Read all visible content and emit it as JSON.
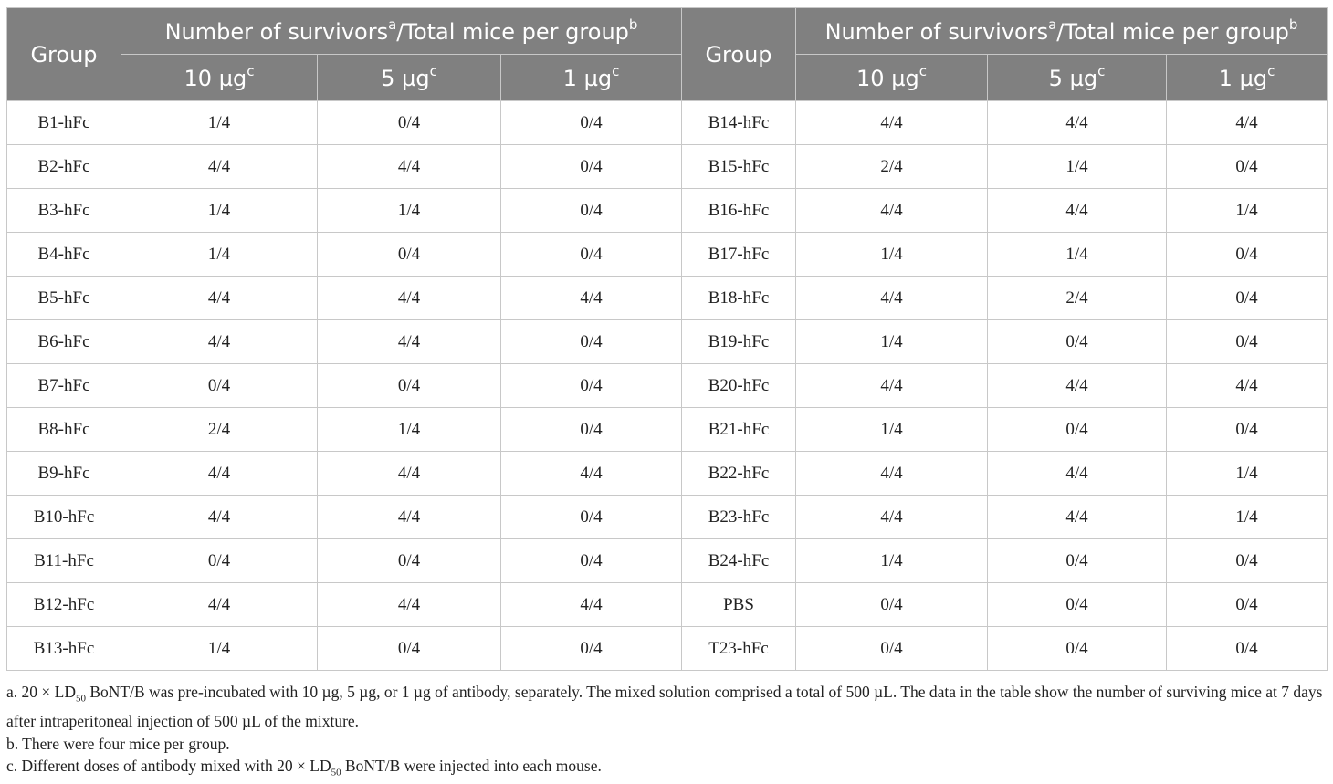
{
  "table": {
    "group_header": "Group",
    "survivor_header": "Number of survivors",
    "survivor_header_sup_a": "a",
    "survivor_header_mid": "/Total mice per group",
    "survivor_header_sup_b": "b",
    "doses": [
      {
        "label": "10 µg",
        "sup": "c"
      },
      {
        "label": "5 µg",
        "sup": "c"
      },
      {
        "label": "1 µg",
        "sup": "c"
      }
    ],
    "rows_left": [
      {
        "group": "B1-hFc",
        "d10": "1/4",
        "d5": "0/4",
        "d1": "0/4"
      },
      {
        "group": "B2-hFc",
        "d10": "4/4",
        "d5": "4/4",
        "d1": "0/4"
      },
      {
        "group": "B3-hFc",
        "d10": "1/4",
        "d5": "1/4",
        "d1": "0/4"
      },
      {
        "group": "B4-hFc",
        "d10": "1/4",
        "d5": "0/4",
        "d1": "0/4"
      },
      {
        "group": "B5-hFc",
        "d10": "4/4",
        "d5": "4/4",
        "d1": "4/4"
      },
      {
        "group": "B6-hFc",
        "d10": "4/4",
        "d5": "4/4",
        "d1": "0/4"
      },
      {
        "group": "B7-hFc",
        "d10": "0/4",
        "d5": "0/4",
        "d1": "0/4"
      },
      {
        "group": "B8-hFc",
        "d10": "2/4",
        "d5": "1/4",
        "d1": "0/4"
      },
      {
        "group": "B9-hFc",
        "d10": "4/4",
        "d5": "4/4",
        "d1": "4/4"
      },
      {
        "group": "B10-hFc",
        "d10": "4/4",
        "d5": "4/4",
        "d1": "0/4"
      },
      {
        "group": "B11-hFc",
        "d10": "0/4",
        "d5": "0/4",
        "d1": "0/4"
      },
      {
        "group": "B12-hFc",
        "d10": "4/4",
        "d5": "4/4",
        "d1": "4/4"
      },
      {
        "group": "B13-hFc",
        "d10": "1/4",
        "d5": "0/4",
        "d1": "0/4"
      }
    ],
    "rows_right": [
      {
        "group": "B14-hFc",
        "d10": "4/4",
        "d5": "4/4",
        "d1": "4/4"
      },
      {
        "group": "B15-hFc",
        "d10": "2/4",
        "d5": "1/4",
        "d1": "0/4"
      },
      {
        "group": "B16-hFc",
        "d10": "4/4",
        "d5": "4/4",
        "d1": "1/4"
      },
      {
        "group": "B17-hFc",
        "d10": "1/4",
        "d5": "1/4",
        "d1": "0/4"
      },
      {
        "group": "B18-hFc",
        "d10": "4/4",
        "d5": "2/4",
        "d1": "0/4"
      },
      {
        "group": "B19-hFc",
        "d10": "1/4",
        "d5": "0/4",
        "d1": "0/4"
      },
      {
        "group": "B20-hFc",
        "d10": "4/4",
        "d5": "4/4",
        "d1": "4/4"
      },
      {
        "group": "B21-hFc",
        "d10": "1/4",
        "d5": "0/4",
        "d1": "0/4"
      },
      {
        "group": "B22-hFc",
        "d10": "4/4",
        "d5": "4/4",
        "d1": "1/4"
      },
      {
        "group": "B23-hFc",
        "d10": "4/4",
        "d5": "4/4",
        "d1": "1/4"
      },
      {
        "group": "B24-hFc",
        "d10": "1/4",
        "d5": "0/4",
        "d1": "0/4"
      },
      {
        "group": "PBS",
        "d10": "0/4",
        "d5": "0/4",
        "d1": "0/4"
      },
      {
        "group": "T23-hFc",
        "d10": "0/4",
        "d5": "0/4",
        "d1": "0/4"
      }
    ]
  },
  "footnotes": {
    "a_pre": "a. 20 × LD",
    "a_sub": "50",
    "a_post": " BoNT/B was pre-incubated with 10 µg, 5 µg, or 1 µg of antibody, separately. The mixed solution comprised a total of 500 µL. The data in the table show the number of surviving mice at 7 days after intraperitoneal injection of 500 µL of the mixture.",
    "b": "b. There were four mice per group.",
    "c_pre": "c. Different doses of antibody mixed with 20 × LD",
    "c_sub": "50",
    "c_post": " BoNT/B were injected into each mouse."
  }
}
